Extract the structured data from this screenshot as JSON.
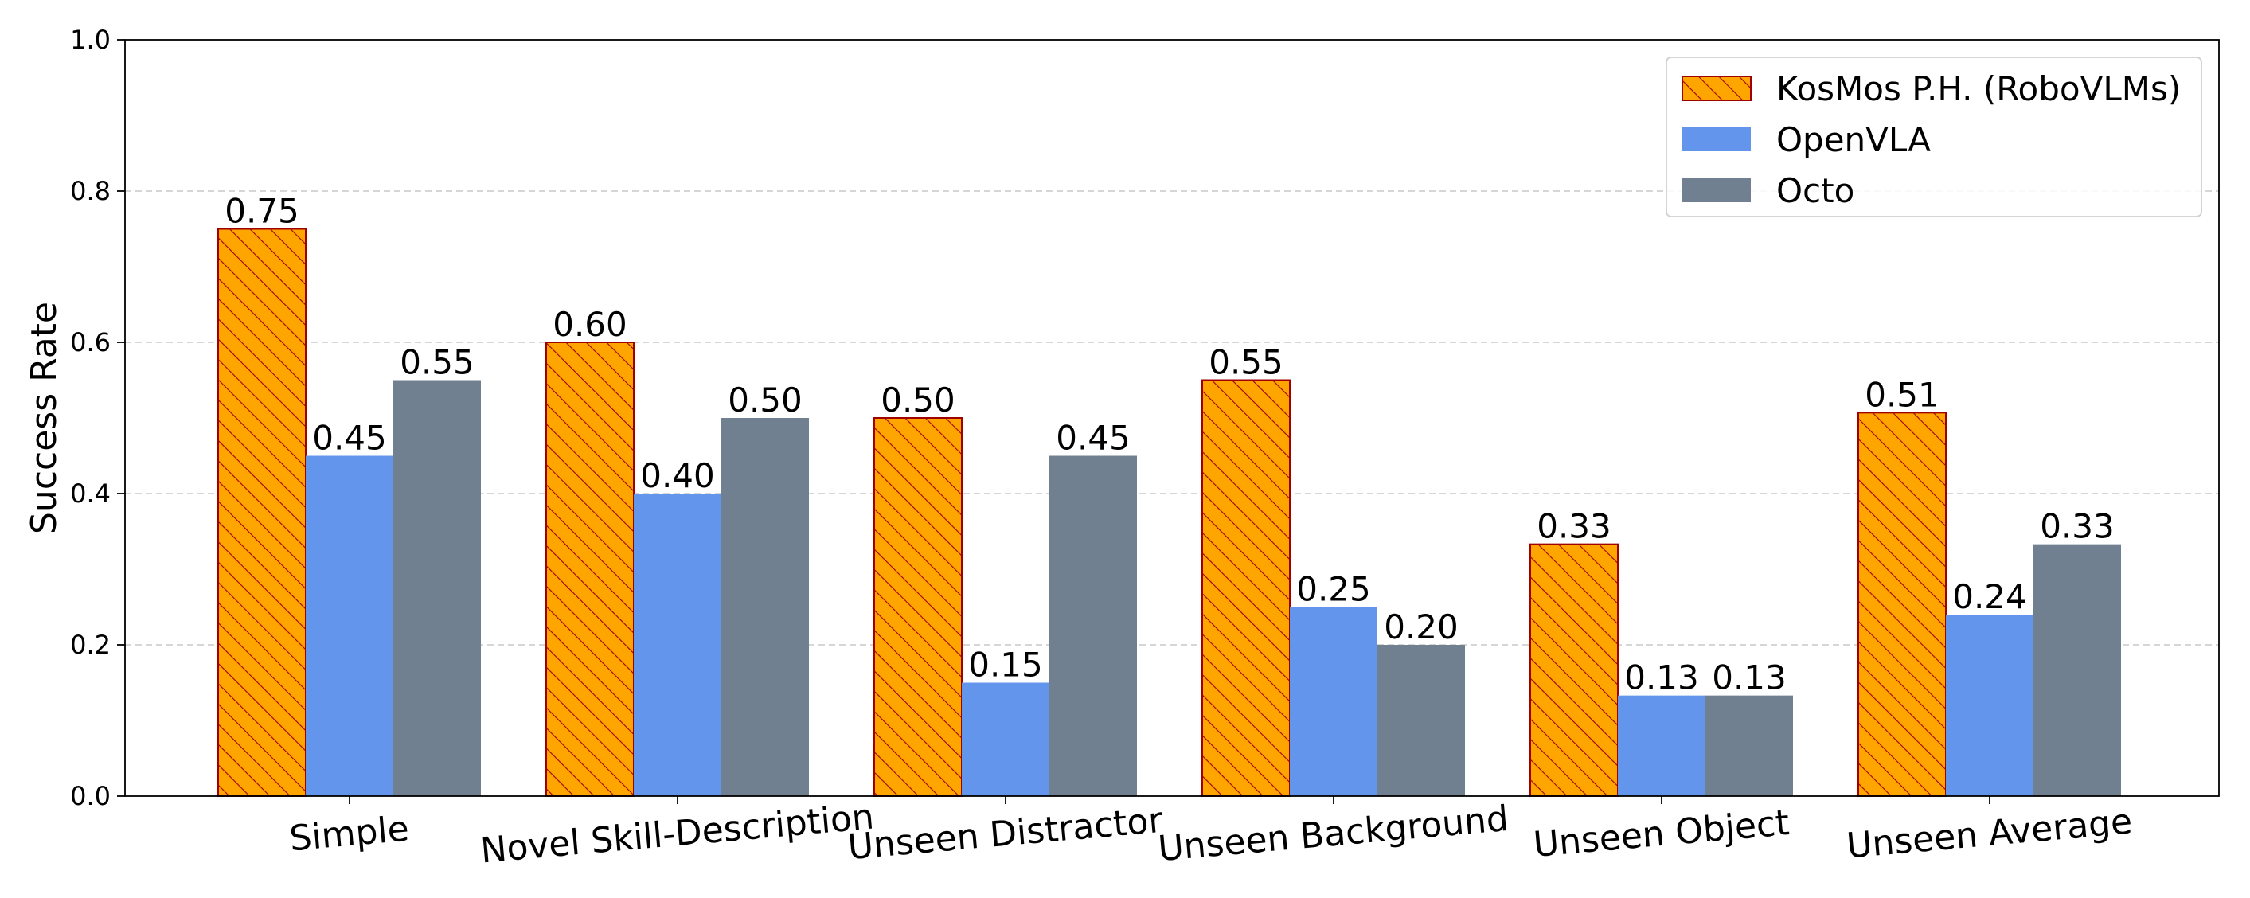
{
  "chart_data": {
    "type": "bar",
    "title": "",
    "xlabel": "",
    "ylabel": "Success Rate",
    "ylim": [
      0,
      1.0
    ],
    "yticks": [
      "0.0",
      "0.2",
      "0.4",
      "0.6",
      "0.8",
      "1.0"
    ],
    "grid": "y-dashed",
    "legend_position": "top-right",
    "categories": [
      "Simple",
      "Novel Skill-Description",
      "Unseen Distractor",
      "Unseen Background",
      "Unseen Object",
      "Unseen Average"
    ],
    "series": [
      {
        "name": "KosMos P.H. (RoboVLMs)",
        "values": [
          0.75,
          0.6,
          0.5,
          0.55,
          0.333,
          0.507
        ],
        "labels": [
          "0.75",
          "0.60",
          "0.50",
          "0.55",
          "0.33",
          "0.51"
        ],
        "color": "#FFA500",
        "edge_color": "#A00000",
        "hatch": true
      },
      {
        "name": "OpenVLA",
        "values": [
          0.45,
          0.4,
          0.15,
          0.25,
          0.133,
          0.24
        ],
        "labels": [
          "0.45",
          "0.40",
          "0.15",
          "0.25",
          "0.13",
          "0.24"
        ],
        "color": "#6495ED",
        "edge_color": "",
        "hatch": false
      },
      {
        "name": "Octo",
        "values": [
          0.55,
          0.5,
          0.45,
          0.2,
          0.133,
          0.333
        ],
        "labels": [
          "0.55",
          "0.50",
          "0.45",
          "0.20",
          "0.13",
          "0.33"
        ],
        "color": "#708090",
        "edge_color": "",
        "hatch": false
      }
    ]
  }
}
